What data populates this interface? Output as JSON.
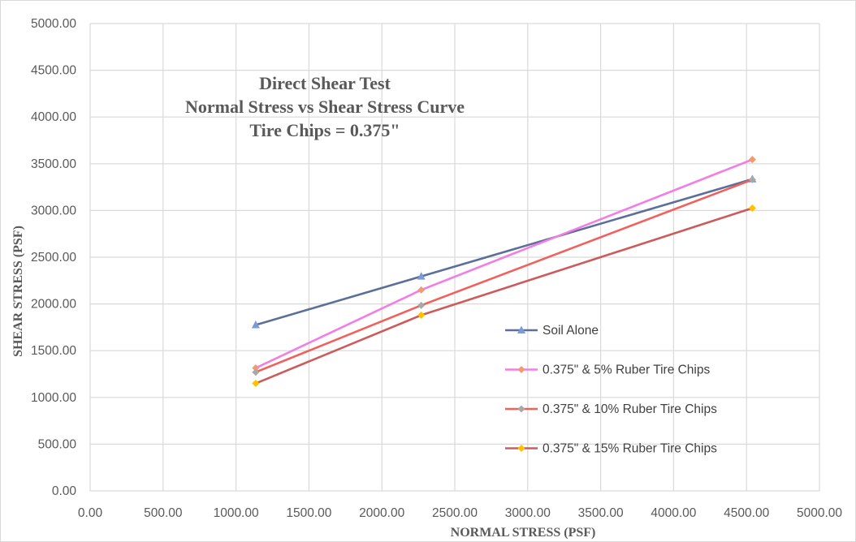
{
  "chart_data": {
    "type": "line",
    "title": [
      "Direct Shear Test",
      "Normal Stress vs Shear Stress Curve",
      "Tire Chips = 0.375\""
    ],
    "xlabel": "NORMAL STRESS (PSF)",
    "ylabel": "SHEAR STRESS (PSF)",
    "xlim": [
      0,
      5000
    ],
    "ylim": [
      0,
      5000
    ],
    "xticks": [
      "0.00",
      "500.00",
      "1000.00",
      "1500.00",
      "2000.00",
      "2500.00",
      "3000.00",
      "3500.00",
      "4000.00",
      "4500.00",
      "5000.00"
    ],
    "yticks": [
      "0.00",
      "500.00",
      "1000.00",
      "1500.00",
      "2000.00",
      "2500.00",
      "3000.00",
      "3500.00",
      "4000.00",
      "4500.00",
      "5000.00"
    ],
    "grid": true,
    "legend_position": "right",
    "series": [
      {
        "name": "Soil Alone",
        "color": "#5b6f99",
        "marker_color": "#7c9ad6",
        "marker": "triangle",
        "x": [
          1135,
          2270,
          4540
        ],
        "y": [
          1775,
          2295,
          3335
        ]
      },
      {
        "name": "0.375\" & 5% Ruber Tire Chips",
        "color": "#f27ee4",
        "marker_color": "#f2996f",
        "marker": "diamond",
        "x": [
          1135,
          2270,
          4540
        ],
        "y": [
          1315,
          2150,
          3545
        ]
      },
      {
        "name": "0.375\" & 10% Ruber Tire Chips",
        "color": "#f0615c",
        "marker_color": "#a8a8a8",
        "marker": "diamond",
        "x": [
          1135,
          2270,
          4540
        ],
        "y": [
          1270,
          1985,
          3330
        ]
      },
      {
        "name": "0.375\" & 15% Ruber Tire Chips",
        "color": "#cc5c5c",
        "marker_color": "#ffc000",
        "marker": "diamond",
        "x": [
          1135,
          2270,
          4540
        ],
        "y": [
          1150,
          1880,
          3025
        ]
      }
    ]
  }
}
